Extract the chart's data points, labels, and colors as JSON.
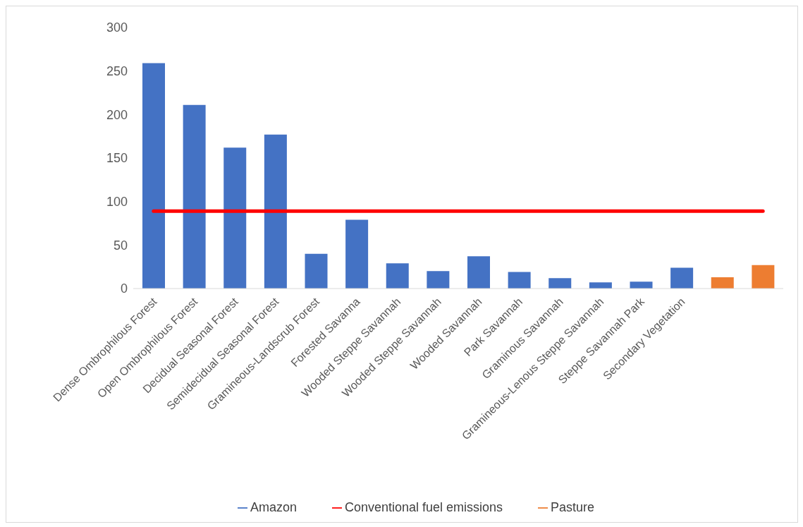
{
  "chart_data": {
    "type": "bar",
    "categories": [
      "Dense Ombrophilous Forest",
      "Open Ombrophilous Forest",
      "Decidual Seasonal Forest",
      "Semidecidual Seasonal Forest",
      "Gramineous-Landscrub Forest",
      "Forested Savanna",
      "Wooded Steppe Savannah",
      "Wooded Steppe Savannah",
      "Wooded Savannah",
      "Park Savannah",
      "Graminous Savannah",
      "Gramineous-Lenous Steppe Savannah",
      "Steppe Savannah Park",
      "Secondary Vegetation",
      null,
      null
    ],
    "series": [
      {
        "name": "Amazon",
        "color": "#4472c4",
        "values": [
          259,
          211,
          162,
          177,
          40,
          79,
          29,
          20,
          37,
          19,
          12,
          7,
          8,
          24,
          null,
          null
        ]
      },
      {
        "name": "Pasture",
        "color": "#ed7d31",
        "values": [
          null,
          null,
          null,
          null,
          null,
          null,
          null,
          null,
          null,
          null,
          null,
          null,
          null,
          null,
          13,
          27
        ]
      },
      {
        "name": "Conventional fuel emissions",
        "type": "line",
        "color": "#ff0000",
        "values": [
          89,
          89,
          89,
          89,
          89,
          89,
          89,
          89,
          89,
          89,
          89,
          89,
          89,
          89,
          89,
          89
        ]
      }
    ],
    "ylim": [
      0,
      300
    ],
    "yticks": [
      0,
      50,
      100,
      150,
      200,
      250,
      300
    ],
    "grid": false,
    "legend": "bottom",
    "marker": "none"
  }
}
